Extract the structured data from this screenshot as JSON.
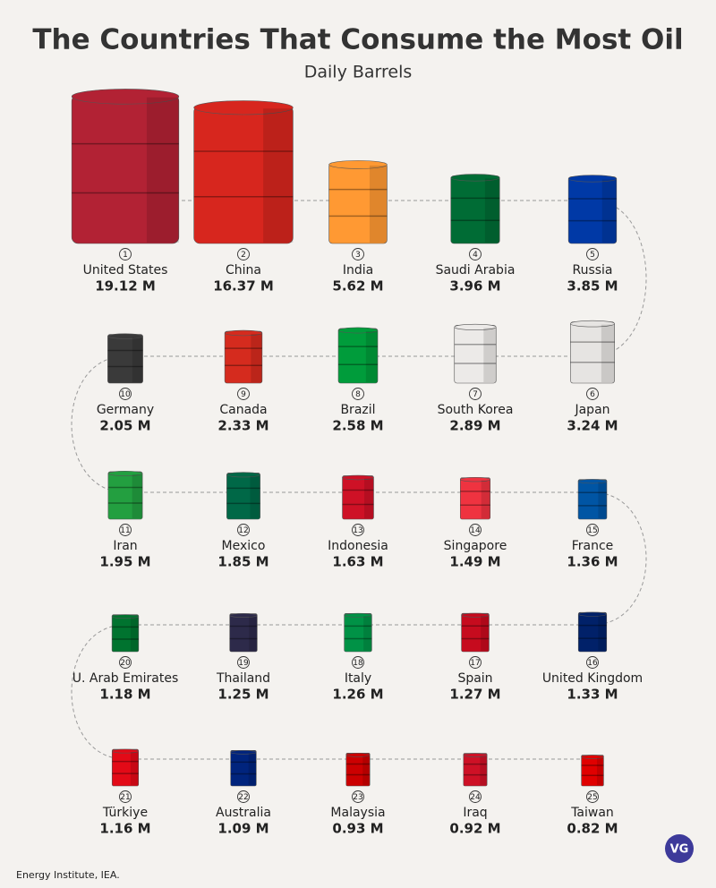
{
  "chart_data": {
    "type": "barrel",
    "title": "The Countries That Consume the Most Oil",
    "subtitle": "Daily Barrels",
    "categories": [
      "United States",
      "China",
      "India",
      "Saudi Arabia",
      "Russia",
      "Japan",
      "South Korea",
      "Brazil",
      "Canada",
      "Germany",
      "Iran",
      "Mexico",
      "Indonesia",
      "Singapore",
      "France",
      "United Kingdom",
      "Spain",
      "Italy",
      "Thailand",
      "U. Arab Emirates",
      "Türkiye",
      "Australia",
      "Malaysia",
      "Iraq",
      "Taiwan"
    ],
    "ranks": [
      1,
      2,
      3,
      4,
      5,
      6,
      7,
      8,
      9,
      10,
      11,
      12,
      13,
      14,
      15,
      16,
      17,
      18,
      19,
      20,
      21,
      22,
      23,
      24,
      25
    ],
    "values": [
      19.12,
      16.37,
      5.62,
      3.96,
      3.85,
      3.24,
      2.89,
      2.58,
      2.33,
      2.05,
      1.95,
      1.85,
      1.63,
      1.49,
      1.36,
      1.33,
      1.27,
      1.26,
      1.25,
      1.18,
      1.16,
      1.09,
      0.93,
      0.92,
      0.82
    ],
    "value_labels": [
      "19.12 M",
      "16.37 M",
      "5.62 M",
      "3.96 M",
      "3.85 M",
      "3.24 M",
      "2.89 M",
      "2.58 M",
      "2.33 M",
      "2.05 M",
      "1.95 M",
      "1.85 M",
      "1.63 M",
      "1.49 M",
      "1.36 M",
      "1.33 M",
      "1.27 M",
      "1.26 M",
      "1.25 M",
      "1.18 M",
      "1.16 M",
      "1.09 M",
      "0.93 M",
      "0.92 M",
      "0.82 M"
    ],
    "colors": [
      "#b22234",
      "#d7261e",
      "#ff9933",
      "#006c35",
      "#0039a6",
      "#e6e4e2",
      "#eceae8",
      "#009c3b",
      "#d52b1e",
      "#3a3a3a",
      "#239f40",
      "#006847",
      "#ce1126",
      "#ef3340",
      "#0055a4",
      "#012169",
      "#c60b1e",
      "#009246",
      "#2d2a4a",
      "#00732f",
      "#e30a17",
      "#00247d",
      "#cc0001",
      "#ce1126",
      "#e00000"
    ],
    "source": "Energy Institute, IEA.",
    "logo": "VG"
  }
}
